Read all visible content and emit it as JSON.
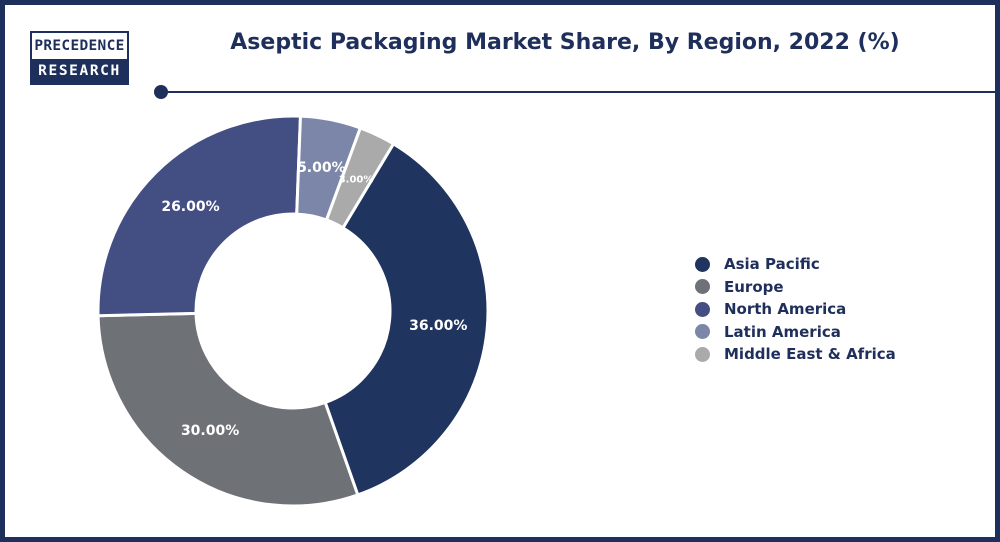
{
  "logo": {
    "line1": "PRECEDENCE",
    "line2": "RESEARCH"
  },
  "header": {
    "title": "Aseptic Packaging Market Share, By Region, 2022 (%)"
  },
  "colors": {
    "brand": "#1f2f5c",
    "background": "#ffffff"
  },
  "chart_data": {
    "type": "pie",
    "subtype": "donut",
    "title": "Aseptic Packaging Market Share, By Region, 2022 (%)",
    "categories": [
      "Asia Pacific",
      "Europe",
      "North America",
      "Latin America",
      "Middle East & Africa"
    ],
    "values": [
      36,
      30,
      26,
      5,
      3
    ],
    "labels": [
      "36.00%",
      "30.00%",
      "26.00%",
      "5.00%",
      "3.00%"
    ],
    "colors": [
      "#1f345e",
      "#6e7277",
      "#434e83",
      "#7c86a8",
      "#aaaaaa"
    ],
    "unit": "%",
    "legend_position": "right",
    "start": "top, clockwise, starting near 12 o'clock with Middle East & Africa/Asia Pacific boundary slightly right of top"
  }
}
